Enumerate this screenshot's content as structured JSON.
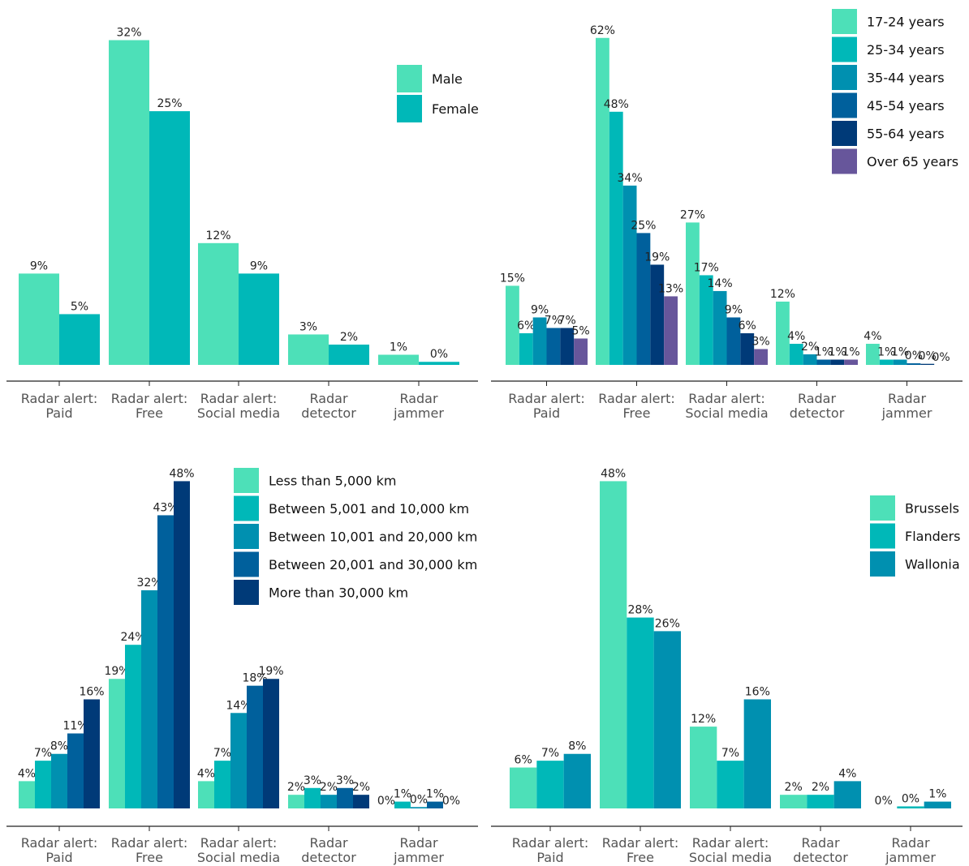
{
  "chart_data": [
    {
      "type": "bar",
      "categories": [
        [
          "Radar alert:",
          "Paid"
        ],
        [
          "Radar alert:",
          "Free"
        ],
        [
          "Radar alert:",
          "Social media"
        ],
        [
          "Radar",
          "detector"
        ],
        [
          "Radar",
          "jammer"
        ]
      ],
      "ylim": [
        0,
        33
      ],
      "legend_position": "top-right",
      "series": [
        {
          "name": "Male",
          "color": "#4de0b8",
          "values": [
            9,
            32,
            12,
            3,
            1
          ],
          "labels": [
            "9%",
            "32%",
            "12%",
            "3%",
            "1%"
          ]
        },
        {
          "name": "Female",
          "color": "#00b8b8",
          "values": [
            5,
            25,
            9,
            2,
            0.3
          ],
          "labels": [
            "5%",
            "25%",
            "9%",
            "2%",
            "0%"
          ]
        }
      ]
    },
    {
      "type": "bar",
      "categories": [
        [
          "Radar alert:",
          "Paid"
        ],
        [
          "Radar alert:",
          "Free"
        ],
        [
          "Radar alert:",
          "Social media"
        ],
        [
          "Radar",
          "detector"
        ],
        [
          "Radar",
          "jammer"
        ]
      ],
      "ylim": [
        0,
        63.5
      ],
      "legend_position": "top-right",
      "series": [
        {
          "name": "17-24 years",
          "color": "#4de0b8",
          "values": [
            15,
            62,
            27,
            12,
            4
          ],
          "labels": [
            "15%",
            "62%",
            "27%",
            "12%",
            "4%"
          ]
        },
        {
          "name": "25-34 years",
          "color": "#00b8b8",
          "values": [
            6,
            48,
            17,
            4,
            1
          ],
          "labels": [
            "6%",
            "48%",
            "17%",
            "4%",
            "1%"
          ]
        },
        {
          "name": "35-44 years",
          "color": "#0090b0",
          "values": [
            9,
            34,
            14,
            2,
            1
          ],
          "labels": [
            "9%",
            "34%",
            "14%",
            "2%",
            "1%"
          ]
        },
        {
          "name": "45-54 years",
          "color": "#00609c",
          "values": [
            7,
            25,
            9,
            1,
            0.3
          ],
          "labels": [
            "7%",
            "25%",
            "9%",
            "1%",
            "0%"
          ]
        },
        {
          "name": "55-64 years",
          "color": "#003a78",
          "values": [
            7,
            19,
            6,
            1,
            0.2
          ],
          "labels": [
            "7%",
            "19%",
            "6%",
            "1%",
            "0%"
          ]
        },
        {
          "name": "Over 65 years",
          "color": "#67569b",
          "values": [
            5,
            13,
            3,
            1,
            0
          ],
          "labels": [
            "5%",
            "13%",
            "3%",
            "1%",
            "0%"
          ]
        }
      ]
    },
    {
      "type": "bar",
      "categories": [
        [
          "Radar alert:",
          "Paid"
        ],
        [
          "Radar alert:",
          "Free"
        ],
        [
          "Radar alert:",
          "Social media"
        ],
        [
          "Radar",
          "detector"
        ],
        [
          "Radar",
          "jammer"
        ]
      ],
      "ylim": [
        0,
        49
      ],
      "legend_position": "top-right",
      "series": [
        {
          "name": "Less than 5,000 km",
          "color": "#4de0b8",
          "values": [
            4,
            19,
            4,
            2,
            0
          ],
          "labels": [
            "4%",
            "19%",
            "4%",
            "2%",
            "0%"
          ]
        },
        {
          "name": "Between 5,001 and 10,000 km",
          "color": "#00b8b8",
          "values": [
            7,
            24,
            7,
            3,
            1
          ],
          "labels": [
            "7%",
            "24%",
            "7%",
            "3%",
            "1%"
          ]
        },
        {
          "name": "Between 10,001 and 20,000 km",
          "color": "#0090b0",
          "values": [
            8,
            32,
            14,
            2,
            0.2
          ],
          "labels": [
            "8%",
            "32%",
            "14%",
            "2%",
            "0%"
          ]
        },
        {
          "name": "Between 20,001 and 30,000 km",
          "color": "#00609c",
          "values": [
            11,
            43,
            18,
            3,
            1
          ],
          "labels": [
            "11%",
            "43%",
            "18%",
            "3%",
            "1%"
          ]
        },
        {
          "name": "More than 30,000 km",
          "color": "#003a78",
          "values": [
            16,
            48,
            19,
            2,
            0
          ],
          "labels": [
            "16%",
            "48%",
            "19%",
            "2%",
            "0%"
          ]
        }
      ]
    },
    {
      "type": "bar",
      "categories": [
        [
          "Radar alert:",
          "Paid"
        ],
        [
          "Radar alert:",
          "Free"
        ],
        [
          "Radar alert:",
          "Social media"
        ],
        [
          "Radar",
          "detector"
        ],
        [
          "Radar",
          "jammer"
        ]
      ],
      "ylim": [
        0,
        49
      ],
      "legend_position": "top-right",
      "series": [
        {
          "name": "Brussels",
          "color": "#4de0b8",
          "values": [
            6,
            48,
            12,
            2,
            0
          ],
          "labels": [
            "6%",
            "48%",
            "12%",
            "2%",
            "0%"
          ]
        },
        {
          "name": "Flanders",
          "color": "#00b8b8",
          "values": [
            7,
            28,
            7,
            2,
            0.3
          ],
          "labels": [
            "7%",
            "28%",
            "7%",
            "2%",
            "0%"
          ]
        },
        {
          "name": "Wallonia",
          "color": "#0090b0",
          "values": [
            8,
            26,
            16,
            4,
            1
          ],
          "labels": [
            "8%",
            "26%",
            "16%",
            "4%",
            "1%"
          ]
        }
      ]
    }
  ]
}
